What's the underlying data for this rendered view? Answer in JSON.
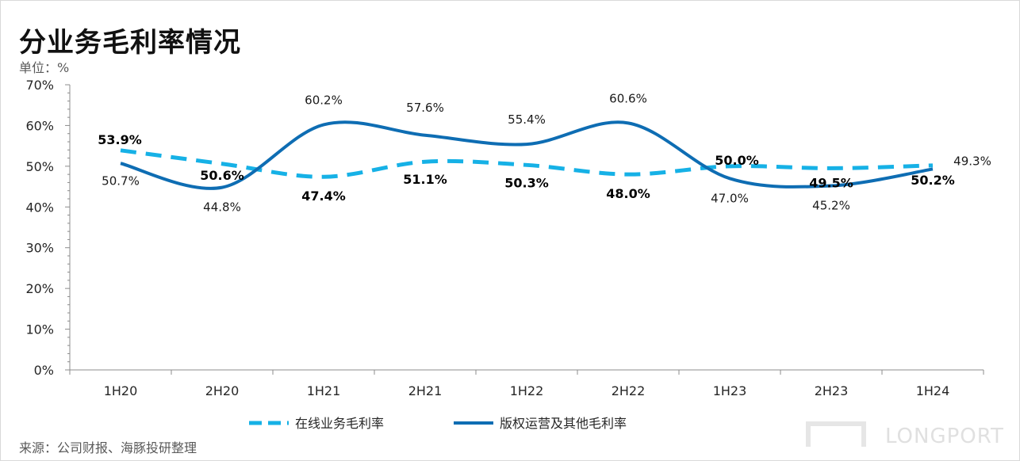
{
  "title": "分业务毛利率情况",
  "unit_label": "单位：%",
  "source": "来源：公司财报、海豚投研整理",
  "logo_text": "LONGPORT",
  "colors": {
    "series1": "#16b1e6",
    "series2": "#0e6db3",
    "axis": "#8c8c8c"
  },
  "chart_data": {
    "type": "line",
    "categories": [
      "1H20",
      "2H20",
      "1H21",
      "2H21",
      "1H22",
      "2H22",
      "1H23",
      "2H23",
      "1H24"
    ],
    "y_ticks": [
      "0%",
      "10%",
      "20%",
      "30%",
      "40%",
      "50%",
      "60%",
      "70%"
    ],
    "ylim": [
      0,
      70
    ],
    "grid": false,
    "legend_position": "bottom",
    "series": [
      {
        "name": "在线业务毛利率",
        "style": "dashed",
        "values": [
          53.9,
          50.6,
          47.4,
          51.1,
          50.3,
          48.0,
          50.0,
          49.5,
          50.2
        ],
        "labels": [
          "53.9%",
          "50.6%",
          "47.4%",
          "51.1%",
          "50.3%",
          "48.0%",
          "50.0%",
          "49.5%",
          "50.2%"
        ]
      },
      {
        "name": "版权运营及其他毛利率",
        "style": "solid",
        "values": [
          50.7,
          44.8,
          60.2,
          57.6,
          55.4,
          60.6,
          47.0,
          45.2,
          49.3
        ],
        "labels": [
          "50.7%",
          "44.8%",
          "60.2%",
          "57.6%",
          "55.4%",
          "60.6%",
          "47.0%",
          "45.2%",
          "49.3%"
        ]
      }
    ]
  }
}
